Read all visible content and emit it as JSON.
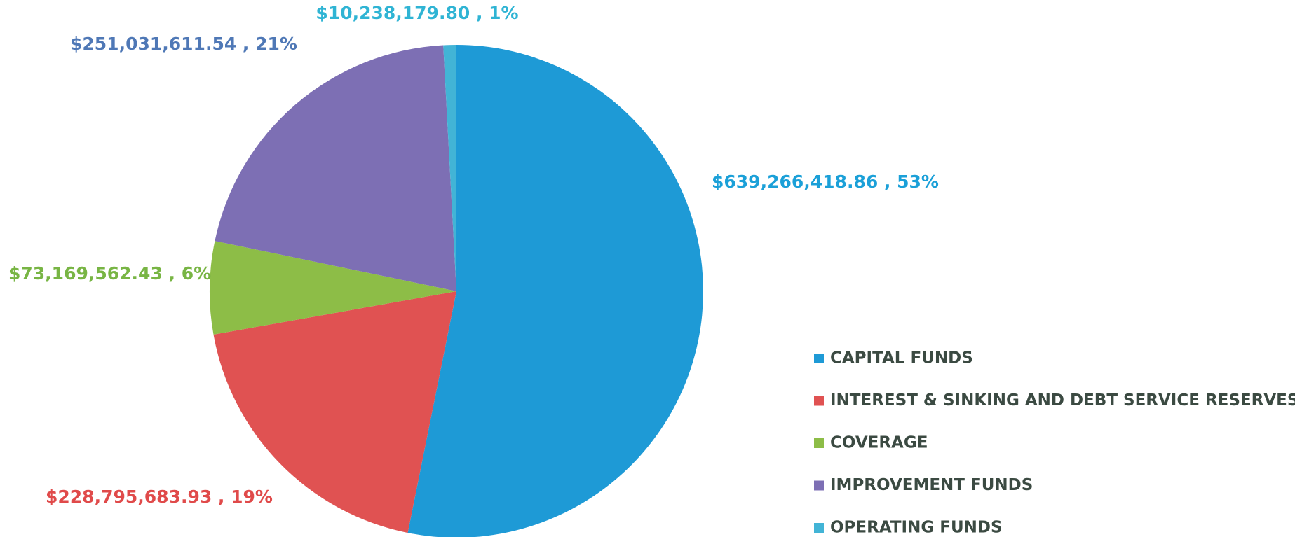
{
  "chart_data": {
    "type": "pie",
    "categories": [
      "CAPITAL FUNDS",
      "INTEREST & SINKING AND DEBT SERVICE RESERVES",
      "COVERAGE",
      "IMPROVEMENT FUNDS",
      "OPERATING FUNDS"
    ],
    "values": [
      639266418.86,
      228795683.93,
      73169562.43,
      251031611.54,
      10238179.8
    ],
    "value_labels": [
      "$639,266,418.86 , 53%",
      "$228,795,683.93 , 19%",
      "$73,169,562.43 , 6%",
      "$251,031,611.54 , 21%",
      "$10,238,179.80 , 1%"
    ],
    "colors": [
      "#1e9ad6",
      "#e05252",
      "#8dbd47",
      "#7d6fb4",
      "#42b4d6"
    ],
    "label_colors": [
      "#1ba0d8",
      "#e04a4a",
      "#78b544",
      "#4f78b6",
      "#2fb4d4"
    ],
    "legend": "right"
  }
}
